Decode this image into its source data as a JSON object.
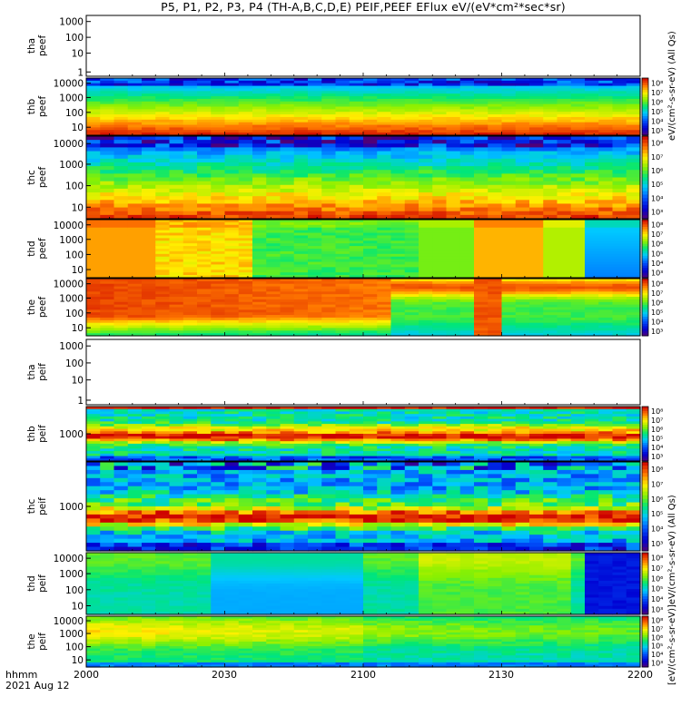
{
  "title": "P5, P1, P2, P3, P4 (TH-A,B,C,D,E) PEIF,PEEF EFlux eV/(eV*cm²*sec*sr)",
  "colorbar_unit_top": "eV/(cm²-s-sr-eV) (All Qs)",
  "colorbar_unit_bottom": "[eV/(cm²-s-sr-eV)]eV/(cm²-s-sr-eV) (All Qs)",
  "colorbar_tick_labels": [
    "10³",
    "10⁴",
    "10⁵",
    "10⁶",
    "10⁷",
    "10⁸"
  ],
  "time_axis": {
    "label_line1": "hhmm",
    "label_line2": "2021 Aug 12",
    "ticks": [
      "2000",
      "2030",
      "2100",
      "2130",
      "2200"
    ]
  },
  "chart_data": [
    {
      "type": "heatmap",
      "probe": "tha",
      "product": "peef",
      "ylabel_line1": "tha",
      "ylabel_line2": "peef",
      "y_ticks": [
        "1000",
        "100",
        "10",
        "1"
      ],
      "has_data": false,
      "profile": "empty"
    },
    {
      "type": "heatmap",
      "probe": "thb",
      "product": "peef",
      "ylabel_line1": "thb",
      "ylabel_line2": "peef",
      "y_ticks": [
        "10000",
        "1000",
        "100",
        "10"
      ],
      "has_data": true,
      "profile": "peef_steady"
    },
    {
      "type": "heatmap",
      "probe": "thc",
      "product": "peef",
      "ylabel_line1": "thc",
      "ylabel_line2": "peef",
      "y_ticks": [
        "10000",
        "1000",
        "100",
        "10"
      ],
      "has_data": true,
      "profile": "peef_steady_noisy"
    },
    {
      "type": "heatmap",
      "probe": "thd",
      "product": "peef",
      "ylabel_line1": "thd",
      "ylabel_line2": "peef",
      "y_ticks": [
        "10000",
        "1000",
        "100",
        "10"
      ],
      "has_data": true,
      "profile": "peef_blocky"
    },
    {
      "type": "heatmap",
      "probe": "the",
      "product": "peef",
      "ylabel_line1": "the",
      "ylabel_line2": "peef",
      "y_ticks": [
        "10000",
        "1000",
        "100",
        "10"
      ],
      "has_data": true,
      "profile": "peef_the"
    },
    {
      "type": "heatmap",
      "probe": "tha",
      "product": "peif",
      "ylabel_line1": "tha",
      "ylabel_line2": "peif",
      "y_ticks": [
        "1000",
        "100",
        "10",
        "1"
      ],
      "has_data": false,
      "profile": "empty"
    },
    {
      "type": "heatmap",
      "probe": "thb",
      "product": "peif",
      "ylabel_line1": "thb",
      "ylabel_line2": "peif",
      "y_ticks": [
        "1000"
      ],
      "has_data": true,
      "profile": "peif_banded"
    },
    {
      "type": "heatmap",
      "probe": "thc",
      "product": "peif",
      "ylabel_line1": "thc",
      "ylabel_line2": "peif",
      "y_ticks": [
        "1000"
      ],
      "has_data": true,
      "profile": "peif_banded_dark"
    },
    {
      "type": "heatmap",
      "probe": "thd",
      "product": "peif",
      "ylabel_line1": "thd",
      "ylabel_line2": "peif",
      "y_ticks": [
        "10000",
        "1000",
        "100",
        "10"
      ],
      "has_data": true,
      "profile": "peif_thd"
    },
    {
      "type": "heatmap",
      "probe": "the",
      "product": "peif",
      "ylabel_line1": "the",
      "ylabel_line2": "peif",
      "y_ticks": [
        "10000",
        "1000",
        "100",
        "10"
      ],
      "has_data": true,
      "profile": "peif_the"
    }
  ]
}
